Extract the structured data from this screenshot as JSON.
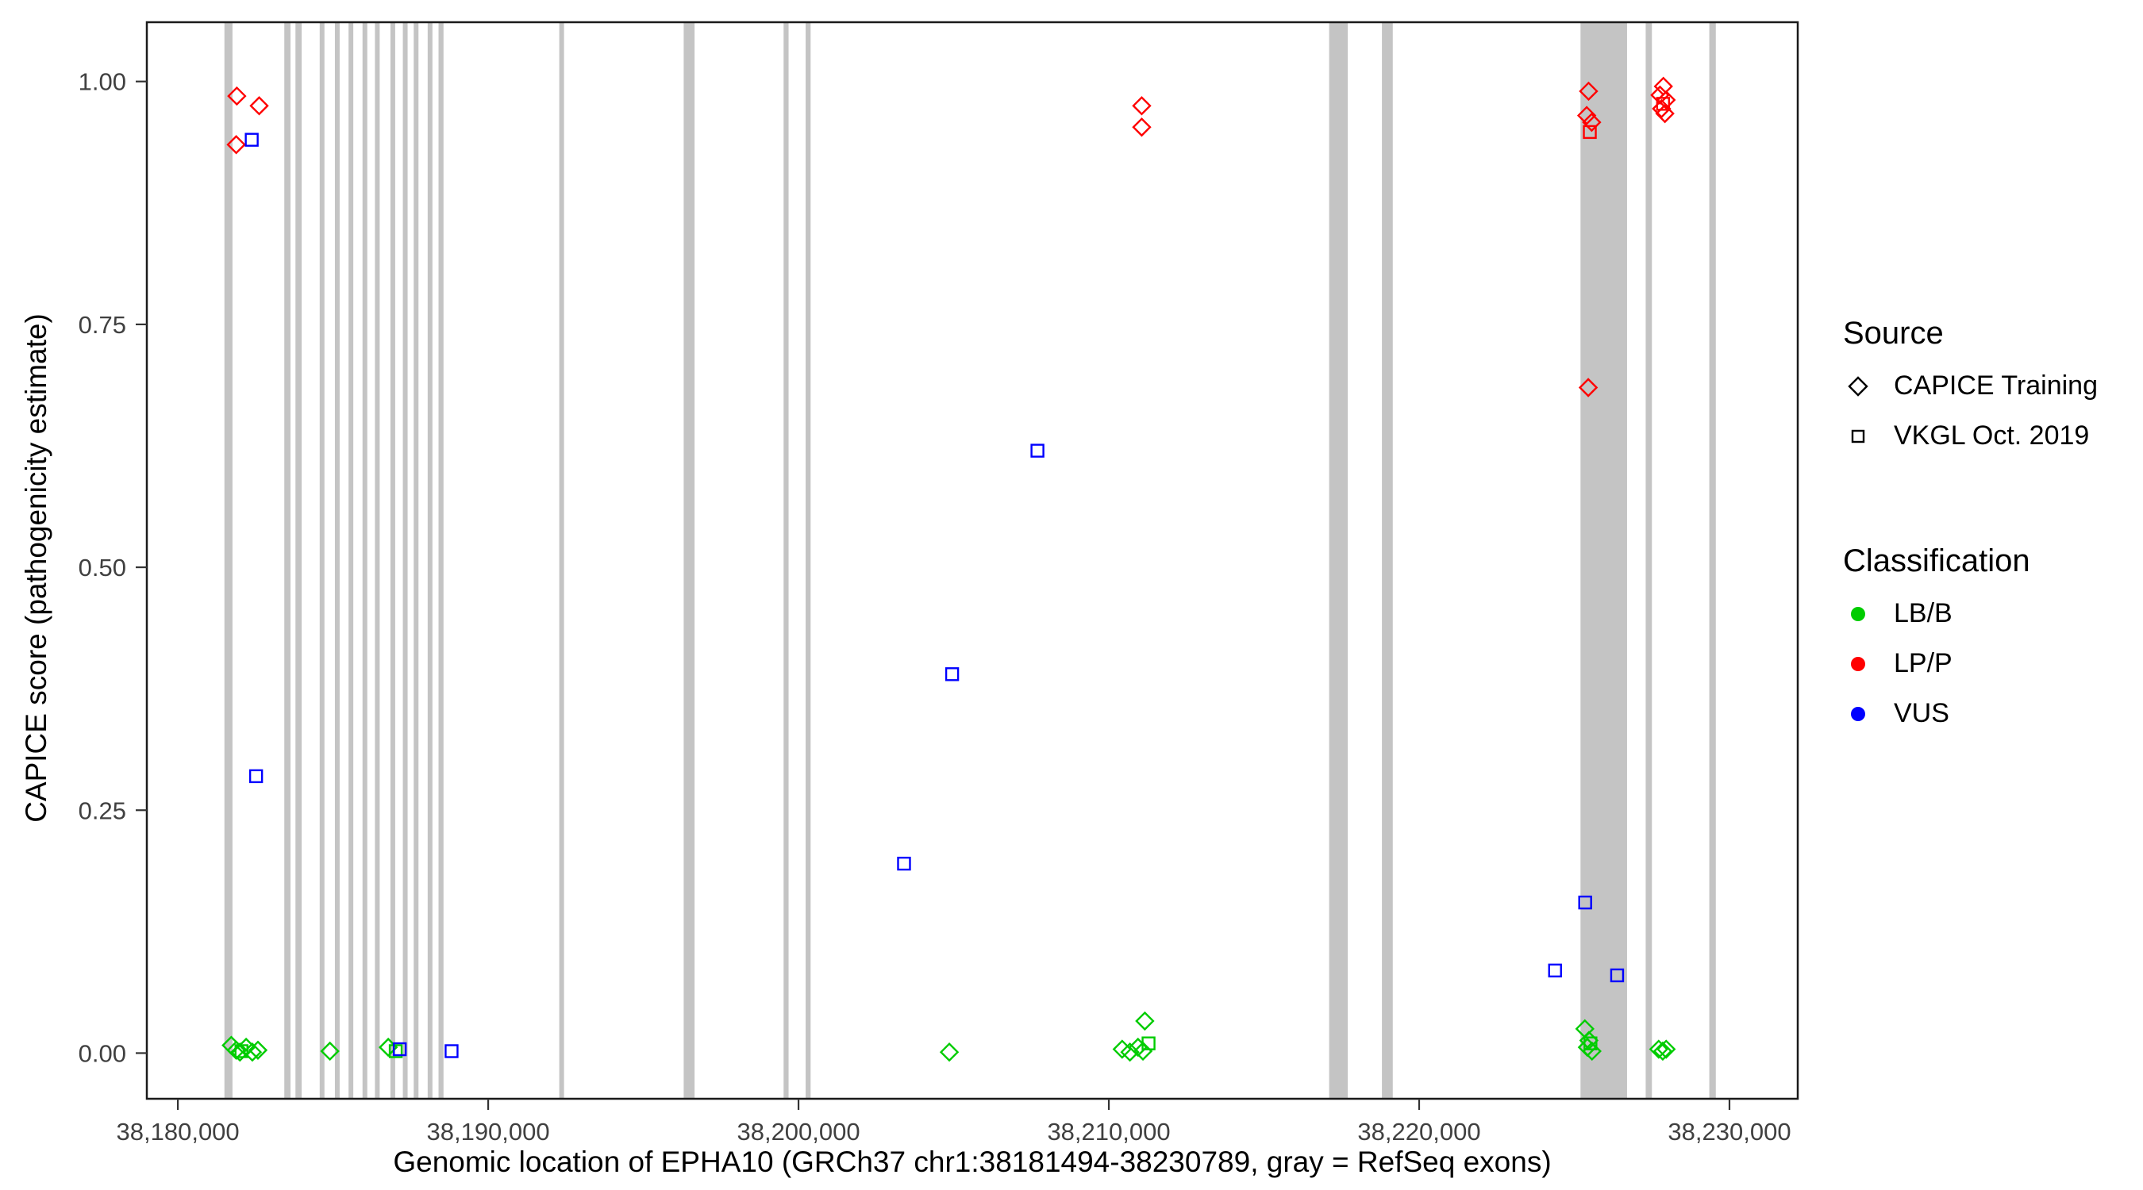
{
  "page": {
    "background": "#ffffff"
  },
  "legend": {
    "source": {
      "title": "Source",
      "items": [
        {
          "label": "CAPICE Training",
          "shape": "diamond"
        },
        {
          "label": "VKGL Oct. 2019",
          "shape": "square"
        }
      ]
    },
    "classification": {
      "title": "Classification",
      "items": [
        {
          "label": "LB/B",
          "color": "#00cc00"
        },
        {
          "label": "LP/P",
          "color": "#ff0000"
        },
        {
          "label": "VUS",
          "color": "#0000ff"
        }
      ]
    }
  },
  "chart_data": {
    "type": "scatter",
    "title": "",
    "xlabel": "Genomic location of EPHA10 (GRCh37 chr1:38181494-38230789, gray = RefSeq exons)",
    "ylabel": "CAPICE score (pathogenicity estimate)",
    "xlim": [
      38179000,
      38232200
    ],
    "ylim": [
      -0.047,
      1.061
    ],
    "grid": false,
    "legend_position": "right",
    "exon_color": "#c4c4c4",
    "x_ticks": [
      {
        "value": 38180000,
        "label": "38,180,000"
      },
      {
        "value": 38190000,
        "label": "38,190,000"
      },
      {
        "value": 38200000,
        "label": "38,200,000"
      },
      {
        "value": 38210000,
        "label": "38,210,000"
      },
      {
        "value": 38220000,
        "label": "38,220,000"
      },
      {
        "value": 38230000,
        "label": "38,230,000"
      }
    ],
    "y_ticks": [
      {
        "value": 0.0,
        "label": "0.00"
      },
      {
        "value": 0.25,
        "label": "0.25"
      },
      {
        "value": 0.5,
        "label": "0.50"
      },
      {
        "value": 0.75,
        "label": "0.75"
      },
      {
        "value": 1.0,
        "label": "1.00"
      }
    ],
    "exons": [
      [
        38181500,
        38181760
      ],
      [
        38183430,
        38183630
      ],
      [
        38183790,
        38183990
      ],
      [
        38184570,
        38184720
      ],
      [
        38185060,
        38185210
      ],
      [
        38185500,
        38185650
      ],
      [
        38185950,
        38186100
      ],
      [
        38186350,
        38186500
      ],
      [
        38186850,
        38187000
      ],
      [
        38187250,
        38187400
      ],
      [
        38187600,
        38187750
      ],
      [
        38188050,
        38188200
      ],
      [
        38188400,
        38188560
      ],
      [
        38192290,
        38192440
      ],
      [
        38196300,
        38196650
      ],
      [
        38199520,
        38199680
      ],
      [
        38200230,
        38200390
      ],
      [
        38217100,
        38217700
      ],
      [
        38218800,
        38219150
      ],
      [
        38225200,
        38226700
      ],
      [
        38227300,
        38227500
      ],
      [
        38229350,
        38229560
      ]
    ],
    "points": [
      {
        "x": 38181900,
        "y": 0.985,
        "source": "CAPICE Training",
        "classification": "LP/P"
      },
      {
        "x": 38182620,
        "y": 0.975,
        "source": "CAPICE Training",
        "classification": "LP/P"
      },
      {
        "x": 38181880,
        "y": 0.935,
        "source": "CAPICE Training",
        "classification": "LP/P"
      },
      {
        "x": 38182380,
        "y": 0.94,
        "source": "VKGL Oct. 2019",
        "classification": "VUS"
      },
      {
        "x": 38182520,
        "y": 0.285,
        "source": "VKGL Oct. 2019",
        "classification": "VUS"
      },
      {
        "x": 38181720,
        "y": 0.008,
        "source": "CAPICE Training",
        "classification": "LB/B"
      },
      {
        "x": 38181880,
        "y": 0.003,
        "source": "CAPICE Training",
        "classification": "LB/B"
      },
      {
        "x": 38182000,
        "y": 0.001,
        "source": "CAPICE Training",
        "classification": "LB/B"
      },
      {
        "x": 38182050,
        "y": 0.002,
        "source": "VKGL Oct. 2019",
        "classification": "LB/B"
      },
      {
        "x": 38182200,
        "y": 0.006,
        "source": "CAPICE Training",
        "classification": "LB/B"
      },
      {
        "x": 38182400,
        "y": 0.001,
        "source": "CAPICE Training",
        "classification": "LB/B"
      },
      {
        "x": 38182580,
        "y": 0.003,
        "source": "CAPICE Training",
        "classification": "LB/B"
      },
      {
        "x": 38184900,
        "y": 0.002,
        "source": "CAPICE Training",
        "classification": "LB/B"
      },
      {
        "x": 38186780,
        "y": 0.006,
        "source": "CAPICE Training",
        "classification": "LB/B"
      },
      {
        "x": 38187020,
        "y": 0.002,
        "source": "VKGL Oct. 2019",
        "classification": "LB/B"
      },
      {
        "x": 38187150,
        "y": 0.004,
        "source": "VKGL Oct. 2019",
        "classification": "VUS"
      },
      {
        "x": 38188820,
        "y": 0.002,
        "source": "VKGL Oct. 2019",
        "classification": "VUS"
      },
      {
        "x": 38203400,
        "y": 0.195,
        "source": "VKGL Oct. 2019",
        "classification": "VUS"
      },
      {
        "x": 38204950,
        "y": 0.39,
        "source": "VKGL Oct. 2019",
        "classification": "VUS"
      },
      {
        "x": 38204860,
        "y": 0.001,
        "source": "CAPICE Training",
        "classification": "LB/B"
      },
      {
        "x": 38207700,
        "y": 0.62,
        "source": "VKGL Oct. 2019",
        "classification": "VUS"
      },
      {
        "x": 38211060,
        "y": 0.975,
        "source": "CAPICE Training",
        "classification": "LP/P"
      },
      {
        "x": 38211060,
        "y": 0.953,
        "source": "CAPICE Training",
        "classification": "LP/P"
      },
      {
        "x": 38210430,
        "y": 0.004,
        "source": "CAPICE Training",
        "classification": "LB/B"
      },
      {
        "x": 38210680,
        "y": 0.001,
        "source": "CAPICE Training",
        "classification": "LB/B"
      },
      {
        "x": 38210940,
        "y": 0.006,
        "source": "CAPICE Training",
        "classification": "LB/B"
      },
      {
        "x": 38211160,
        "y": 0.033,
        "source": "CAPICE Training",
        "classification": "LB/B"
      },
      {
        "x": 38211280,
        "y": 0.01,
        "source": "VKGL Oct. 2019",
        "classification": "LB/B"
      },
      {
        "x": 38211100,
        "y": 0.002,
        "source": "CAPICE Training",
        "classification": "LB/B"
      },
      {
        "x": 38225460,
        "y": 0.99,
        "source": "CAPICE Training",
        "classification": "LP/P"
      },
      {
        "x": 38225400,
        "y": 0.965,
        "source": "CAPICE Training",
        "classification": "LP/P"
      },
      {
        "x": 38225560,
        "y": 0.958,
        "source": "CAPICE Training",
        "classification": "LP/P"
      },
      {
        "x": 38225500,
        "y": 0.948,
        "source": "VKGL Oct. 2019",
        "classification": "LP/P"
      },
      {
        "x": 38225450,
        "y": 0.685,
        "source": "CAPICE Training",
        "classification": "LP/P"
      },
      {
        "x": 38224380,
        "y": 0.085,
        "source": "VKGL Oct. 2019",
        "classification": "VUS"
      },
      {
        "x": 38225350,
        "y": 0.155,
        "source": "VKGL Oct. 2019",
        "classification": "VUS"
      },
      {
        "x": 38226380,
        "y": 0.08,
        "source": "VKGL Oct. 2019",
        "classification": "VUS"
      },
      {
        "x": 38225340,
        "y": 0.025,
        "source": "CAPICE Training",
        "classification": "LB/B"
      },
      {
        "x": 38225470,
        "y": 0.013,
        "source": "CAPICE Training",
        "classification": "LB/B"
      },
      {
        "x": 38225420,
        "y": 0.006,
        "source": "CAPICE Training",
        "classification": "LB/B"
      },
      {
        "x": 38225570,
        "y": 0.002,
        "source": "CAPICE Training",
        "classification": "LB/B"
      },
      {
        "x": 38225520,
        "y": 0.01,
        "source": "VKGL Oct. 2019",
        "classification": "LB/B"
      },
      {
        "x": 38227870,
        "y": 0.995,
        "source": "CAPICE Training",
        "classification": "LP/P"
      },
      {
        "x": 38227760,
        "y": 0.986,
        "source": "CAPICE Training",
        "classification": "LP/P"
      },
      {
        "x": 38227960,
        "y": 0.981,
        "source": "CAPICE Training",
        "classification": "LP/P"
      },
      {
        "x": 38227810,
        "y": 0.972,
        "source": "CAPICE Training",
        "classification": "LP/P"
      },
      {
        "x": 38227920,
        "y": 0.967,
        "source": "CAPICE Training",
        "classification": "LP/P"
      },
      {
        "x": 38227860,
        "y": 0.977,
        "source": "VKGL Oct. 2019",
        "classification": "LP/P"
      },
      {
        "x": 38227720,
        "y": 0.004,
        "source": "CAPICE Training",
        "classification": "LB/B"
      },
      {
        "x": 38227960,
        "y": 0.004,
        "source": "CAPICE Training",
        "classification": "LB/B"
      },
      {
        "x": 38227850,
        "y": 0.002,
        "source": "CAPICE Training",
        "classification": "LB/B"
      }
    ]
  }
}
